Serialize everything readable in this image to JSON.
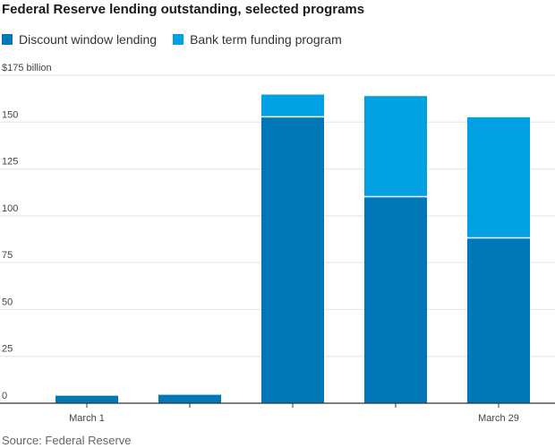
{
  "title": "Federal Reserve lending outstanding, selected programs",
  "source": "Source: Federal Reserve",
  "colors": {
    "discount": "#0077b6",
    "btfp": "#00a0e3",
    "grid": "#e3e3e3",
    "axis": "#333333"
  },
  "chart_data": {
    "type": "bar",
    "stacked": true,
    "categories": [
      "March 1",
      "",
      "",
      "",
      "March 29"
    ],
    "series": [
      {
        "name": "Discount window lending",
        "values": [
          4,
          4.5,
          152.8,
          110.2,
          88.2
        ]
      },
      {
        "name": "Bank term funding program",
        "values": [
          0,
          0,
          11.9,
          53.7,
          64.4
        ]
      }
    ],
    "ylim": [
      0,
      175
    ],
    "yticks": [
      "$175 billion",
      "150",
      "125",
      "100",
      "75",
      "50",
      "25",
      "0"
    ],
    "ytick_values": [
      175,
      150,
      125,
      100,
      75,
      50,
      25,
      0
    ],
    "grid": true,
    "legend_position": "top-left"
  }
}
